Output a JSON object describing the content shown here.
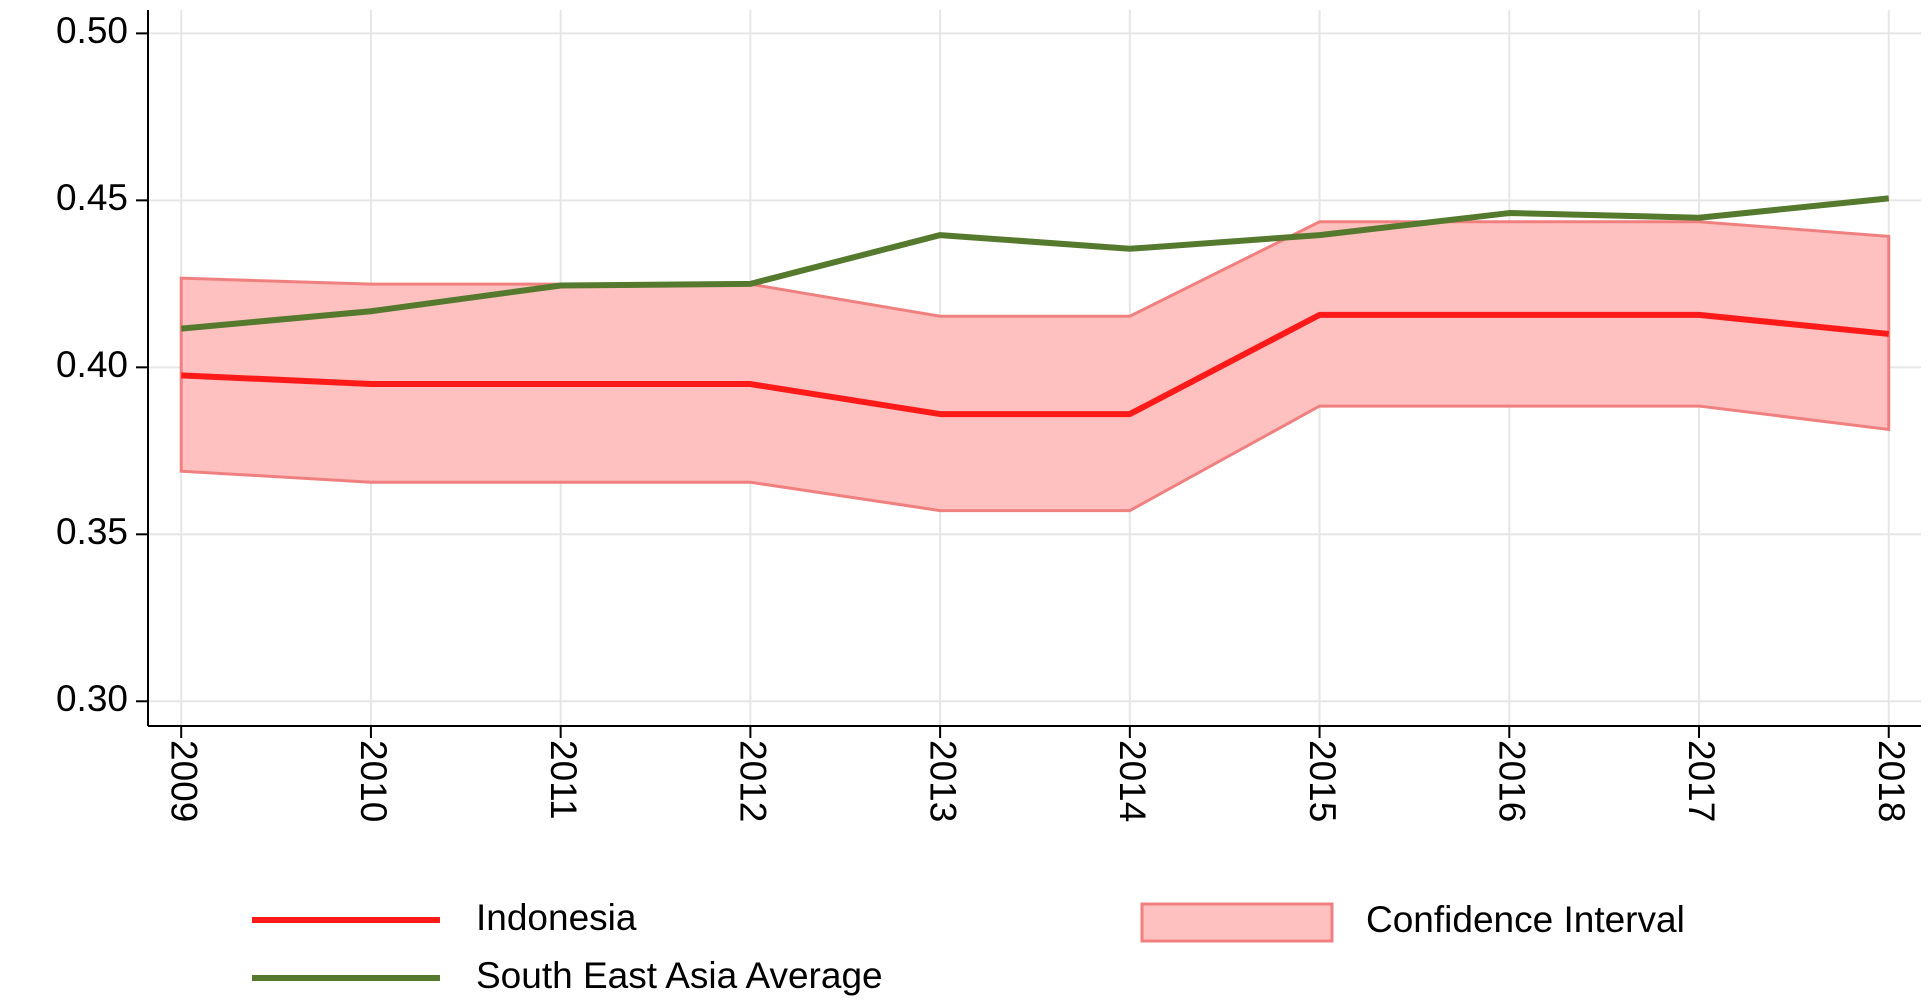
{
  "chart_data": {
    "type": "line",
    "x": [
      2009,
      2010,
      2011,
      2012,
      2013,
      2014,
      2015,
      2016,
      2017,
      2018
    ],
    "xlim": [
      2008.825,
      2018.17
    ],
    "xticks": [
      2009,
      2010,
      2011,
      2012,
      2013,
      2014,
      2015,
      2016,
      2017,
      2018
    ],
    "ylim": [
      0.2926,
      0.507
    ],
    "yticks": [
      {
        "value": 0.3,
        "label": "0.30"
      },
      {
        "value": 0.35,
        "label": "0.35"
      },
      {
        "value": 0.4,
        "label": "0.40"
      },
      {
        "value": 0.45,
        "label": "0.45"
      },
      {
        "value": 0.5,
        "label": "0.50"
      }
    ],
    "grid": true,
    "series": [
      {
        "name": "Indonesia",
        "color": "#ff1a1a",
        "values": [
          0.3976,
          0.395,
          0.395,
          0.395,
          0.386,
          0.386,
          0.4157,
          0.4157,
          0.4157,
          0.41
        ]
      },
      {
        "name": "South East Asia Average",
        "color": "#557a2e",
        "values": [
          0.4116,
          0.4168,
          0.4245,
          0.425,
          0.4396,
          0.4355,
          0.4396,
          0.4462,
          0.4448,
          0.4506
        ]
      }
    ],
    "band": {
      "name": "Confidence Interval",
      "color": "#ffc0c0",
      "edge_color": "#f08080",
      "lower": [
        0.3689,
        0.3656,
        0.3656,
        0.3656,
        0.3571,
        0.3571,
        0.3884,
        0.3884,
        0.3884,
        0.3814
      ],
      "upper": [
        0.4267,
        0.4249,
        0.4249,
        0.4249,
        0.4153,
        0.4153,
        0.4436,
        0.4436,
        0.4436,
        0.4392
      ]
    }
  }
}
